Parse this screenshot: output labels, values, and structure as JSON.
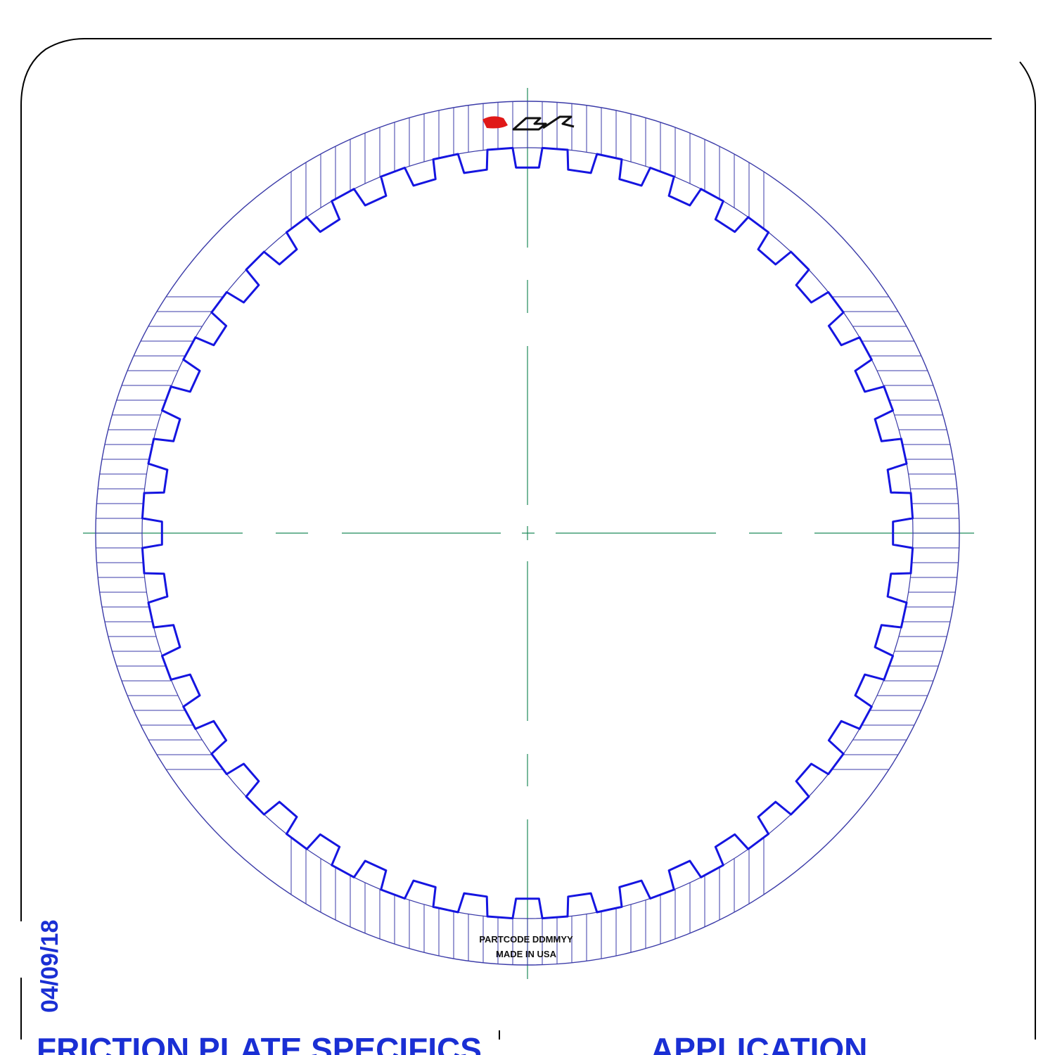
{
  "drawing": {
    "date": "04/09/18",
    "logo_text": "Raybestos GPZ",
    "stamp_line1": "PARTCODE DDMMYY",
    "stamp_line2": "MADE IN USA",
    "footer_left": "FRICTION PLATE SPECIFICS",
    "footer_right": "APPLICATION",
    "plate": {
      "tooth_count": 44,
      "groove_rule": "segmented radial grooves"
    },
    "colors": {
      "outline": "#3a3aa8",
      "teeth": "#1515e0",
      "centerline": "#1f8a5a",
      "border": "#000000",
      "text_blue": "#1a2fd4",
      "logo_red": "#e01818"
    }
  }
}
